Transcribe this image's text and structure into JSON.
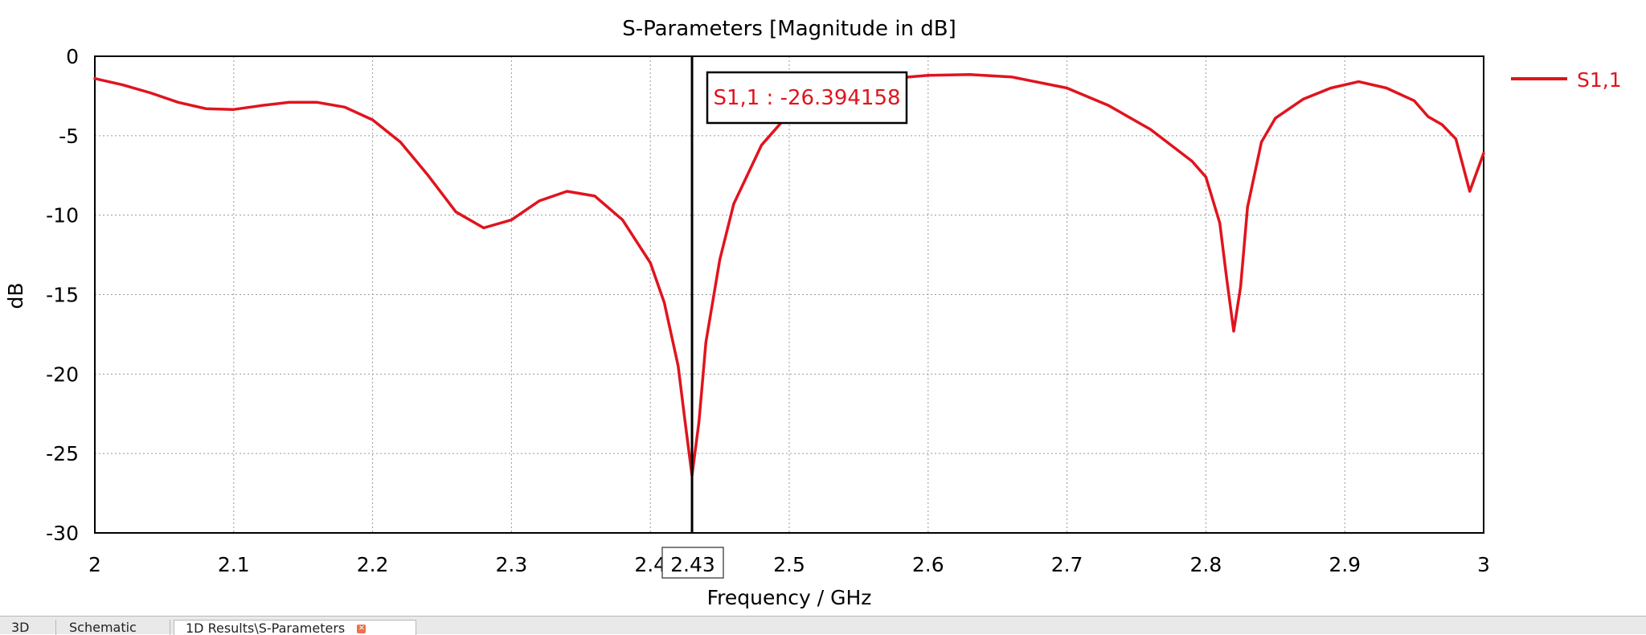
{
  "chart_data": {
    "type": "line",
    "title": "S-Parameters [Magnitude in dB]",
    "xlabel": "Frequency / GHz",
    "ylabel": "dB",
    "xlim": [
      2,
      3
    ],
    "ylim": [
      -30,
      0
    ],
    "x_ticks": [
      2,
      2.1,
      2.2,
      2.3,
      2.4,
      2.5,
      2.6,
      2.7,
      2.8,
      2.9,
      3
    ],
    "x_tick_labels": [
      "2",
      "2.1",
      "2.2",
      "2.3",
      "2.4",
      "2.5",
      "2.6",
      "2.7",
      "2.8",
      "2.9",
      "3"
    ],
    "y_ticks": [
      0,
      -5,
      -10,
      -15,
      -20,
      -25,
      -30
    ],
    "y_tick_labels": [
      "0",
      "-5",
      "-10",
      "-15",
      "-20",
      "-25",
      "-30"
    ],
    "grid": true,
    "legend_position": "top-right",
    "series": [
      {
        "name": "S1,1",
        "color": "#e0141e",
        "points": [
          [
            2.0,
            -1.4
          ],
          [
            2.02,
            -1.8
          ],
          [
            2.04,
            -2.3
          ],
          [
            2.06,
            -2.9
          ],
          [
            2.08,
            -3.3
          ],
          [
            2.1,
            -3.35
          ],
          [
            2.12,
            -3.1
          ],
          [
            2.14,
            -2.9
          ],
          [
            2.16,
            -2.9
          ],
          [
            2.18,
            -3.2
          ],
          [
            2.2,
            -4.0
          ],
          [
            2.22,
            -5.4
          ],
          [
            2.24,
            -7.5
          ],
          [
            2.26,
            -9.8
          ],
          [
            2.28,
            -10.8
          ],
          [
            2.3,
            -10.3
          ],
          [
            2.32,
            -9.1
          ],
          [
            2.34,
            -8.5
          ],
          [
            2.36,
            -8.8
          ],
          [
            2.38,
            -10.3
          ],
          [
            2.4,
            -13.0
          ],
          [
            2.41,
            -15.5
          ],
          [
            2.42,
            -19.5
          ],
          [
            2.425,
            -23.0
          ],
          [
            2.43,
            -26.394158
          ],
          [
            2.435,
            -23.0
          ],
          [
            2.44,
            -18.0
          ],
          [
            2.45,
            -12.8
          ],
          [
            2.46,
            -9.3
          ],
          [
            2.48,
            -5.6
          ],
          [
            2.5,
            -3.6
          ],
          [
            2.53,
            -2.2
          ],
          [
            2.56,
            -1.5
          ],
          [
            2.6,
            -1.2
          ],
          [
            2.63,
            -1.15
          ],
          [
            2.66,
            -1.3
          ],
          [
            2.7,
            -2.0
          ],
          [
            2.73,
            -3.1
          ],
          [
            2.76,
            -4.6
          ],
          [
            2.79,
            -6.6
          ],
          [
            2.8,
            -7.6
          ],
          [
            2.81,
            -10.5
          ],
          [
            2.815,
            -14.0
          ],
          [
            2.82,
            -17.3
          ],
          [
            2.825,
            -14.5
          ],
          [
            2.83,
            -9.5
          ],
          [
            2.84,
            -5.4
          ],
          [
            2.85,
            -3.9
          ],
          [
            2.87,
            -2.7
          ],
          [
            2.89,
            -2.0
          ],
          [
            2.91,
            -1.6
          ],
          [
            2.93,
            -2.0
          ],
          [
            2.95,
            -2.8
          ],
          [
            2.96,
            -3.8
          ],
          [
            2.97,
            -4.3
          ],
          [
            2.98,
            -5.2
          ],
          [
            2.99,
            -8.5
          ],
          [
            3.0,
            -6.1
          ]
        ]
      }
    ],
    "marker": {
      "x": 2.43,
      "label": "S1,1 : -26.394158",
      "x_label": "2.43"
    }
  },
  "tabs": [
    {
      "label": "3D"
    },
    {
      "label": "Schematic"
    },
    {
      "label": "1D Results\\S-Parameters"
    }
  ]
}
